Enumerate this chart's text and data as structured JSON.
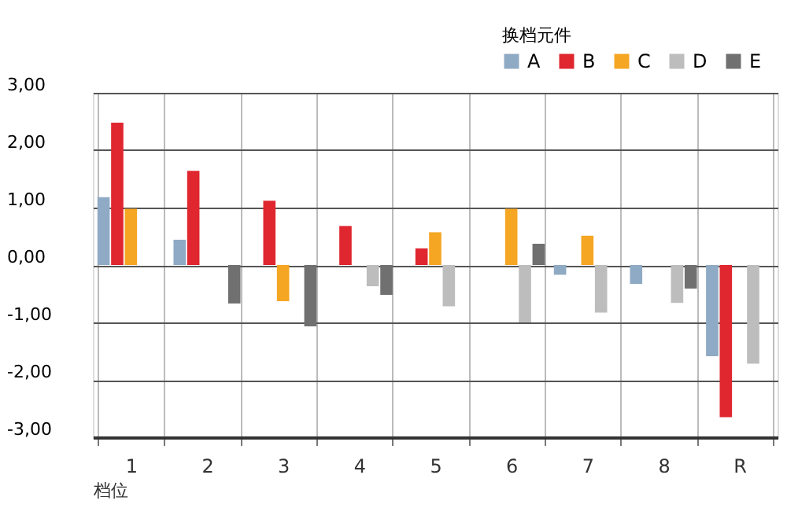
{
  "chart_data": {
    "type": "bar",
    "xlabel": "档位",
    "legend_title": "换档元件",
    "categories": [
      "1",
      "2",
      "3",
      "4",
      "5",
      "6",
      "7",
      "8",
      "R"
    ],
    "series": [
      {
        "name": "A",
        "color": "#8faac4",
        "values": [
          1.18,
          0.44,
          null,
          null,
          null,
          null,
          -0.17,
          -0.33,
          -1.59
        ]
      },
      {
        "name": "B",
        "color": "#e0262f",
        "values": [
          2.48,
          1.64,
          1.12,
          0.68,
          0.29,
          null,
          null,
          null,
          -2.65
        ]
      },
      {
        "name": "C",
        "color": "#f5a623",
        "values": [
          0.98,
          null,
          -0.63,
          null,
          0.57,
          0.98,
          0.51,
          null,
          null
        ]
      },
      {
        "name": "D",
        "color": "#bdbdbd",
        "values": [
          null,
          null,
          null,
          -0.37,
          -0.72,
          -1.0,
          -0.83,
          -0.66,
          -1.72
        ]
      },
      {
        "name": "E",
        "color": "#707070",
        "values": [
          null,
          -0.67,
          -1.07,
          -0.52,
          null,
          0.37,
          null,
          -0.41,
          null
        ]
      }
    ],
    "ylim": [
      -3,
      3
    ],
    "yticks": [
      {
        "value": -3,
        "label": "-3,00"
      },
      {
        "value": -2,
        "label": "-2,00"
      },
      {
        "value": -1,
        "label": "-1,00"
      },
      {
        "value": 0,
        "label": "0,00"
      },
      {
        "value": 1,
        "label": "1,00"
      },
      {
        "value": 2,
        "label": "2,00"
      },
      {
        "value": 3,
        "label": "3,00"
      }
    ],
    "grid": true,
    "legend": "top right"
  }
}
